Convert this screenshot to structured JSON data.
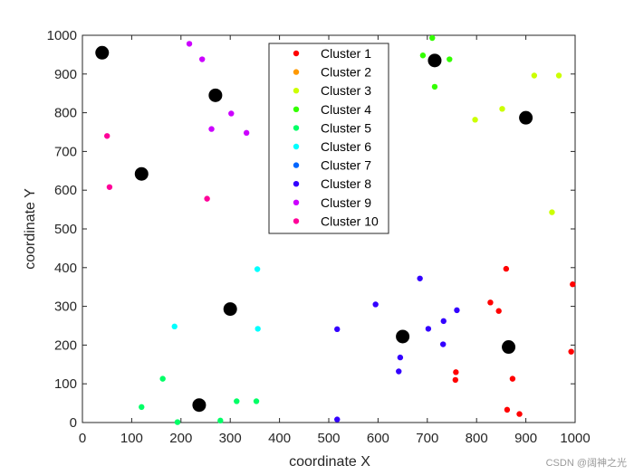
{
  "chart_data": {
    "type": "scatter",
    "title": "",
    "xlabel": "coordinate X",
    "ylabel": "coordinate Y",
    "xlim": [
      0,
      1000
    ],
    "ylim": [
      0,
      1000
    ],
    "xticks": [
      0,
      100,
      200,
      300,
      400,
      500,
      600,
      700,
      800,
      900,
      1000
    ],
    "yticks": [
      0,
      100,
      200,
      300,
      400,
      500,
      600,
      700,
      800,
      900,
      1000
    ],
    "legend_position": "top-center",
    "series": [
      {
        "name": "Cluster 1",
        "color": "#ff0000",
        "points": [
          [
            860,
            397
          ],
          [
            995,
            357
          ],
          [
            828,
            310
          ],
          [
            845,
            288
          ],
          [
            992,
            183
          ],
          [
            758,
            130
          ],
          [
            757,
            110
          ],
          [
            873,
            113
          ],
          [
            862,
            33
          ],
          [
            887,
            22
          ]
        ]
      },
      {
        "name": "Cluster 2",
        "color": "#ff9900",
        "points": []
      },
      {
        "name": "Cluster 3",
        "color": "#ccff00",
        "points": [
          [
            917,
            896
          ],
          [
            967,
            896
          ],
          [
            852,
            810
          ],
          [
            797,
            782
          ],
          [
            953,
            543
          ]
        ]
      },
      {
        "name": "Cluster 4",
        "color": "#33ff00",
        "points": [
          [
            710,
            993
          ],
          [
            691,
            948
          ],
          [
            745,
            938
          ],
          [
            715,
            867
          ]
        ]
      },
      {
        "name": "Cluster 5",
        "color": "#00ff66",
        "points": [
          [
            163,
            113
          ],
          [
            120,
            40
          ],
          [
            313,
            55
          ],
          [
            353,
            55
          ],
          [
            193,
            1
          ],
          [
            280,
            5
          ]
        ]
      },
      {
        "name": "Cluster 6",
        "color": "#00ffff",
        "points": [
          [
            355,
            396
          ],
          [
            187,
            248
          ],
          [
            356,
            242
          ]
        ]
      },
      {
        "name": "Cluster 7",
        "color": "#0066ff",
        "points": []
      },
      {
        "name": "Cluster 8",
        "color": "#3300ff",
        "points": [
          [
            685,
            372
          ],
          [
            595,
            305
          ],
          [
            760,
            290
          ],
          [
            733,
            262
          ],
          [
            517,
            241
          ],
          [
            702,
            242
          ],
          [
            645,
            168
          ],
          [
            732,
            202
          ],
          [
            642,
            132
          ],
          [
            517,
            8
          ]
        ]
      },
      {
        "name": "Cluster 9",
        "color": "#cc00ff",
        "points": [
          [
            217,
            978
          ],
          [
            243,
            938
          ],
          [
            302,
            798
          ],
          [
            262,
            758
          ],
          [
            333,
            748
          ]
        ]
      },
      {
        "name": "Cluster 10",
        "color": "#ff0099",
        "points": [
          [
            50,
            740
          ],
          [
            55,
            608
          ],
          [
            253,
            578
          ]
        ]
      }
    ],
    "centroids": {
      "color": "#000000",
      "points": [
        [
          40,
          955
        ],
        [
          270,
          845
        ],
        [
          715,
          935
        ],
        [
          900,
          787
        ],
        [
          120,
          642
        ],
        [
          300,
          293
        ],
        [
          650,
          222
        ],
        [
          865,
          195
        ],
        [
          237,
          45
        ]
      ]
    }
  },
  "watermark_text": "CSDN @阔神之光"
}
